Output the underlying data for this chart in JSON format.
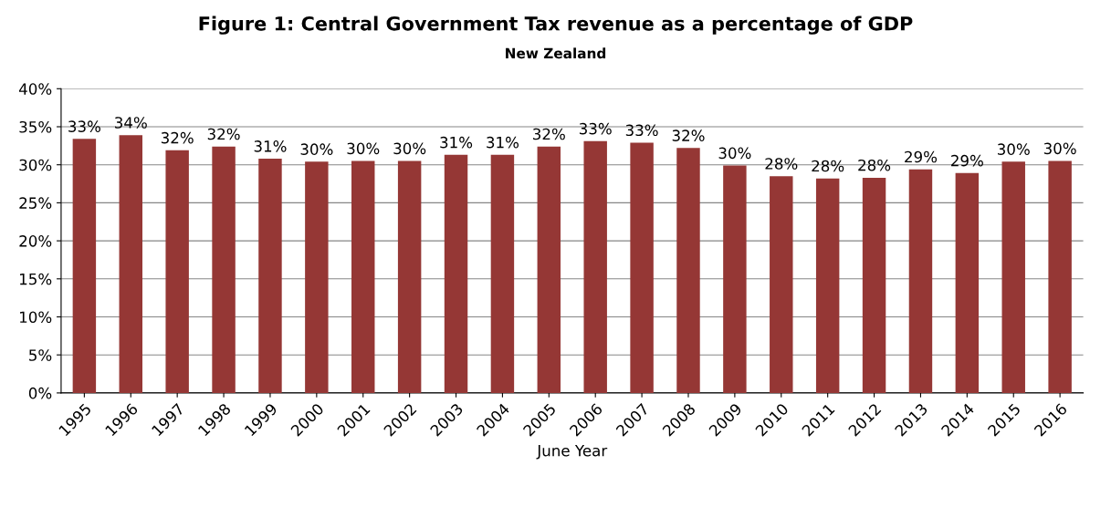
{
  "chart_data": {
    "type": "bar",
    "title": "Figure 1: Central Government Tax revenue as a percentage of GDP",
    "subtitle": "New Zealand",
    "xlabel": "June Year",
    "categories": [
      "1995",
      "1996",
      "1997",
      "1998",
      "1999",
      "2000",
      "2001",
      "2002",
      "2003",
      "2004",
      "2005",
      "2006",
      "2007",
      "2008",
      "2009",
      "2010",
      "2011",
      "2012",
      "2013",
      "2014",
      "2015",
      "2016"
    ],
    "values": [
      33.4,
      33.9,
      31.9,
      32.4,
      30.8,
      30.4,
      30.5,
      30.5,
      31.3,
      31.3,
      32.4,
      33.1,
      32.9,
      32.2,
      29.9,
      28.5,
      28.2,
      28.3,
      29.4,
      28.9,
      30.4,
      30.5
    ],
    "value_labels": [
      "33%",
      "34%",
      "32%",
      "32%",
      "31%",
      "30%",
      "30%",
      "30%",
      "31%",
      "31%",
      "32%",
      "33%",
      "33%",
      "32%",
      "30%",
      "28%",
      "28%",
      "28%",
      "29%",
      "29%",
      "30%",
      "30%"
    ],
    "color": "#953735",
    "ylim": [
      0,
      40
    ],
    "yticks": [
      {
        "value": 0,
        "label": "0%"
      },
      {
        "value": 5,
        "label": "5%"
      },
      {
        "value": 10,
        "label": "10%"
      },
      {
        "value": 15,
        "label": "15%"
      },
      {
        "value": 20,
        "label": "20%"
      },
      {
        "value": 25,
        "label": "25%"
      },
      {
        "value": 30,
        "label": "30%"
      },
      {
        "value": 35,
        "label": "35%"
      },
      {
        "value": 40,
        "label": "40%"
      }
    ],
    "grid": "y",
    "legend": false
  }
}
